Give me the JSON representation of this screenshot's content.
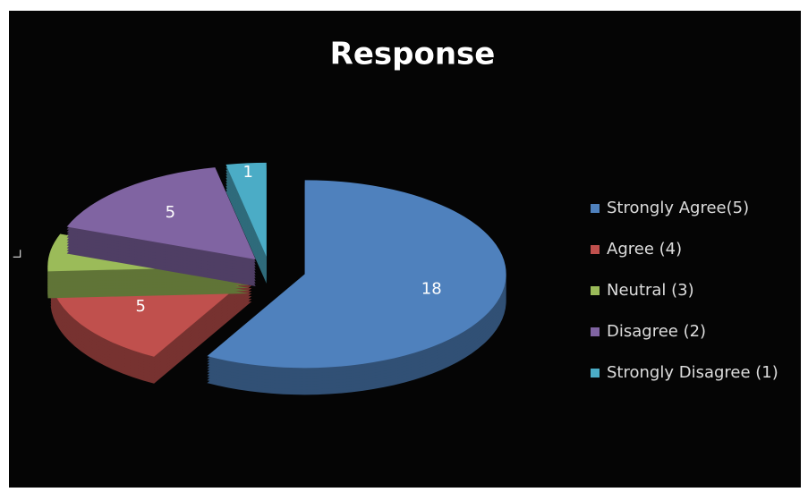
{
  "chart_data": {
    "type": "pie",
    "title": "Response",
    "categories": [
      "Strongly Agree(5)",
      "Agree (4)",
      "Neutral (3)",
      "Disagree (2)",
      "Strongly Disagree (1)"
    ],
    "values": [
      18,
      5,
      2,
      5,
      1
    ],
    "colors": [
      "#4f81bd",
      "#c0504d",
      "#9bbb59",
      "#8064a2",
      "#4bacc6"
    ],
    "legend": "right"
  }
}
